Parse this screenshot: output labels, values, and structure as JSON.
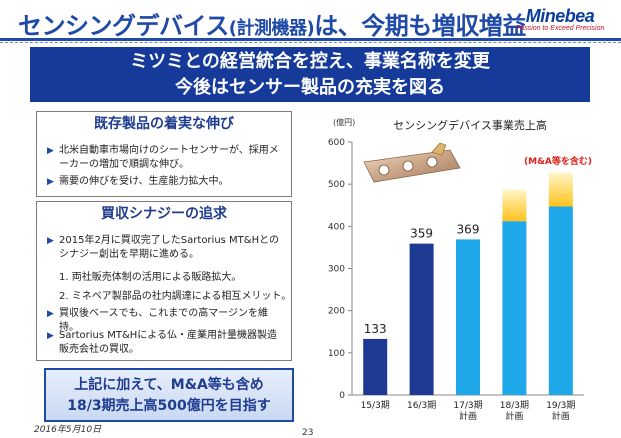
{
  "header": {
    "title_main": "センシングデバイス",
    "title_paren": "(計測機器)",
    "title_tail": "は、今期も増収増益",
    "logo_brand": "Minebea",
    "logo_tagline": "Passion to Exceed Precision",
    "brand_color": "#1f4aa8"
  },
  "banner": {
    "line1": "ミツミとの経営統合を控え、事業名称を変更",
    "line2": "今後はセンサー製品の充実を図る"
  },
  "section1": {
    "heading": "既存製品の着実な伸び",
    "bullets": [
      "北米自動車市場向けのシートセンサーが、採用メーカーの増加で順調な伸び。",
      "需要の伸びを受け、生産能力拡大中。"
    ]
  },
  "section2": {
    "heading": "買収シナジーの追求",
    "bullets": [
      "2015年2月に買収完了したSartorius MT&Hとのシナジー創出を早期に進める。",
      "買収後ベースでも、これまでの高マージンを維持。",
      "Sartorius MT&Hによる仏・産業用計量機器製造販売会社の買収。"
    ],
    "subitems": [
      "1. 両社販売体制の活用による販路拡大。",
      "2. ミネベア製部品の社内調達による相互メリット。"
    ]
  },
  "goal": {
    "line1": "上記に加えて、M&A等も含め",
    "line2": "18/3期売上高500億円を目指す"
  },
  "footer": {
    "date": "2016年5月10日",
    "page": "23"
  },
  "chart_data": {
    "type": "bar",
    "title": "センシングデバイス事業売上高",
    "unit_label": "(億円)",
    "categories": [
      [
        "15/3期"
      ],
      [
        "16/3期"
      ],
      [
        "17/3期",
        "計画"
      ],
      [
        "18/3期",
        "計画"
      ],
      [
        "19/3期",
        "計画"
      ]
    ],
    "values": [
      133,
      359,
      369,
      412,
      447
    ],
    "ma_top": [
      null,
      null,
      null,
      487,
      527
    ],
    "value_labels": [
      "133",
      "359",
      "369",
      "",
      ""
    ],
    "annotation": "(M&A等を含む)",
    "ylim": [
      0,
      600
    ],
    "yticks": [
      0,
      100,
      200,
      300,
      400,
      500,
      600
    ],
    "colors": {
      "actual": "#1f3a93",
      "plan": "#1ea7e9",
      "ma_light": "#fff6c8",
      "ma_strong": "#ffc21a",
      "annotation": "#e0201a"
    }
  }
}
